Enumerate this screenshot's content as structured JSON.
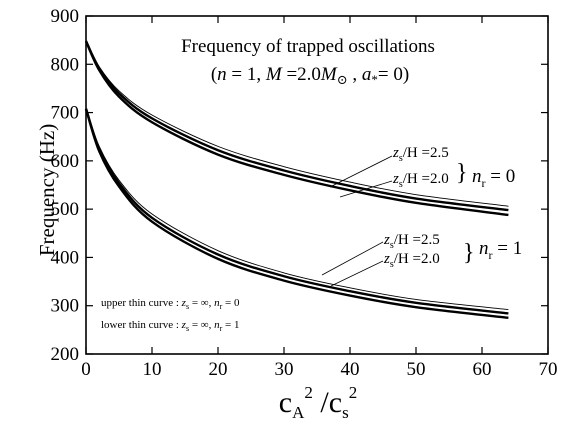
{
  "chart_data": {
    "type": "line",
    "title_line1": "Frequency of trapped oscillations",
    "title_line2": {
      "open": "(",
      "n": "n",
      "n_eq": " = 1, ",
      "M": "M",
      "M_eq": " =2.0",
      "M2": "M",
      "sun": "⊙",
      "comma": " , ",
      "a": "a",
      "star": "*",
      "a_eq": "= 0)"
    },
    "xlabel": {
      "base1": "c",
      "sub1": "A",
      "sup1": "2",
      "slash": " /",
      "base2": "c",
      "sub2": "s",
      "sup2": "2"
    },
    "ylabel": "Frequency   (Hz)",
    "xlim": [
      0,
      70
    ],
    "ylim": [
      200,
      900
    ],
    "xticks": [
      0,
      10,
      20,
      30,
      40,
      50,
      60,
      70
    ],
    "yticks": [
      200,
      300,
      400,
      500,
      600,
      700,
      800,
      900
    ],
    "series": [
      {
        "group": "nr0",
        "kind": "thin",
        "x": [
          0,
          2,
          5,
          10,
          20,
          30,
          40,
          50,
          64
        ],
        "y": [
          848,
          795,
          745,
          695,
          630,
          588,
          556,
          530,
          506
        ]
      },
      {
        "group": "nr0",
        "kind": "thick",
        "x": [
          0,
          2,
          5,
          10,
          20,
          30,
          40,
          50,
          64
        ],
        "y": [
          848,
          792,
          740,
          688,
          622,
          580,
          548,
          522,
          498
        ]
      },
      {
        "group": "nr0",
        "kind": "thick",
        "x": [
          0,
          2,
          5,
          10,
          20,
          30,
          40,
          50,
          64
        ],
        "y": [
          848,
          788,
          733,
          680,
          613,
          571,
          539,
          513,
          488
        ]
      },
      {
        "group": "nr1",
        "kind": "thin",
        "x": [
          0,
          2,
          5,
          10,
          20,
          30,
          40,
          50,
          64
        ],
        "y": [
          708,
          630,
          560,
          490,
          414,
          368,
          337,
          313,
          292
        ]
      },
      {
        "group": "nr1",
        "kind": "thick",
        "x": [
          0,
          2,
          5,
          10,
          20,
          30,
          40,
          50,
          64
        ],
        "y": [
          708,
          625,
          554,
          482,
          406,
          361,
          330,
          306,
          284
        ]
      },
      {
        "group": "nr1",
        "kind": "thick",
        "x": [
          0,
          2,
          5,
          10,
          20,
          30,
          40,
          50,
          64
        ],
        "y": [
          708,
          620,
          547,
          474,
          397,
          352,
          321,
          297,
          275
        ]
      }
    ],
    "annotations": {
      "group0": {
        "zs25": {
          "z": "z",
          "s": "s",
          "rest": "/H =2.5"
        },
        "zs20": {
          "z": "z",
          "s": "s",
          "rest": "/H =2.0"
        },
        "brace": "}",
        "nr": {
          "n": "n",
          "r": "r",
          "eq": " = 0"
        }
      },
      "group1": {
        "zs25": {
          "z": "z",
          "s": "s",
          "rest": "/H =2.5"
        },
        "zs20": {
          "z": "z",
          "s": "s",
          "rest": "/H =2.0"
        },
        "brace": "}",
        "nr": {
          "n": "n",
          "r": "r",
          "eq": " = 1"
        }
      },
      "legend_upper": {
        "prefix": "upper thin curve : ",
        "z": "z",
        "s": "s",
        "mid": " = ∞,   ",
        "n": "n",
        "r": "r",
        "eq": " = 0"
      },
      "legend_lower": {
        "prefix": "lower thin curve : ",
        "z": "z",
        "s": "s",
        "mid": " = ∞,   ",
        "n": "n",
        "r": "r",
        "eq": " = 1"
      }
    }
  }
}
